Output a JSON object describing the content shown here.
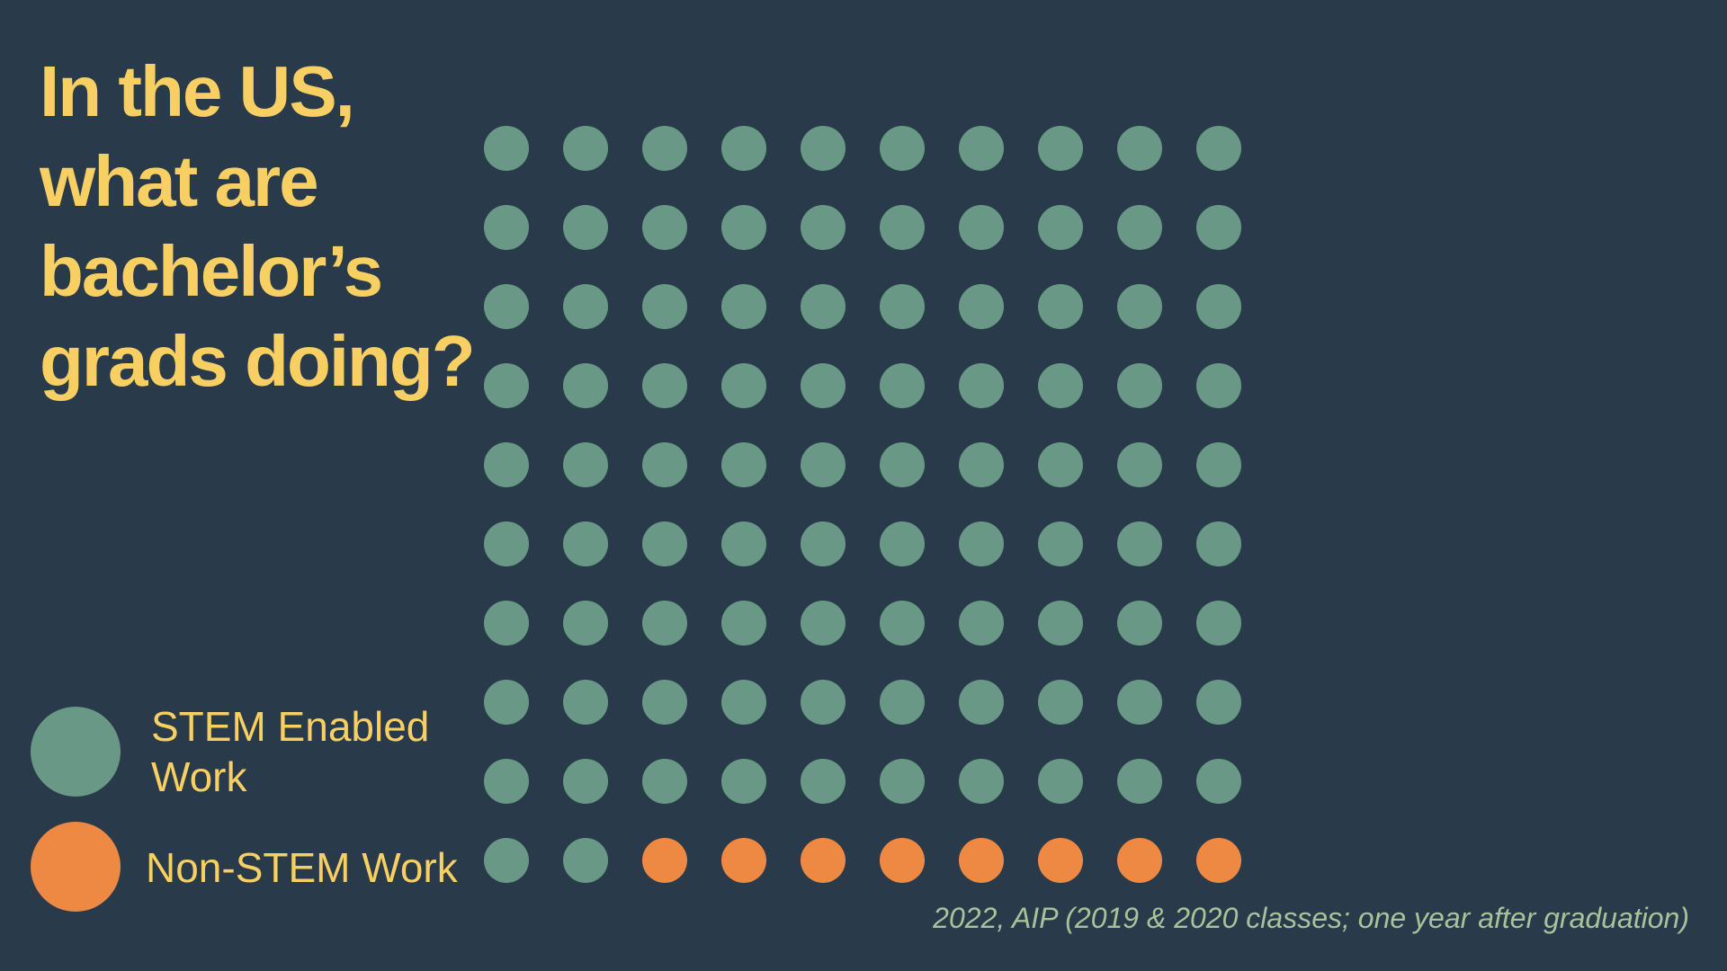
{
  "title_lines": [
    "In the US,",
    "what are",
    "bachelor’s",
    "grads doing?"
  ],
  "legend": [
    {
      "label_lines": [
        "STEM Enabled",
        "Work"
      ],
      "color": "#6a9886"
    },
    {
      "label_lines": [
        "Non-STEM Work"
      ],
      "color": "#ee8944"
    }
  ],
  "source": "2022, AIP (2019 & 2020 classes; one year after graduation)",
  "colors": {
    "background": "#293a4a",
    "title": "#f7cf62",
    "stem": "#6a9886",
    "non_stem": "#ee8944",
    "source": "#a9c29a"
  },
  "chart_data": {
    "type": "waffle",
    "total_units": 100,
    "grid": {
      "rows": 10,
      "columns": 10
    },
    "categories": [
      "STEM Enabled Work",
      "Non-STEM Work"
    ],
    "values": [
      92,
      8
    ],
    "colors": [
      "#6a9886",
      "#ee8944"
    ],
    "fill_order": "row-major, top-left to bottom-right",
    "legend_placement": "bottom-left"
  }
}
